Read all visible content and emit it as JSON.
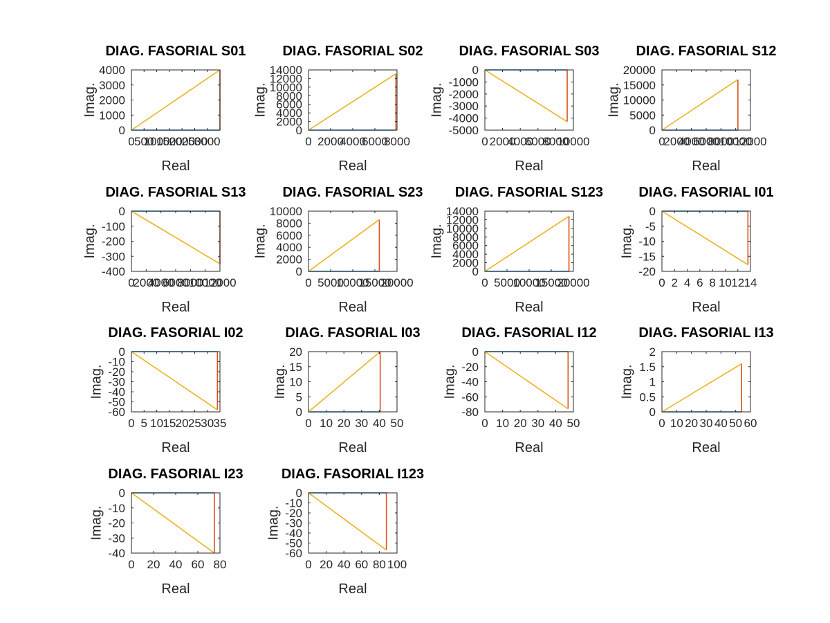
{
  "colors": {
    "real": "#0072BD",
    "imag": "#D95319",
    "phasor": "#EDB120",
    "axes": "#262626"
  },
  "chart_data": [
    {
      "type": "line",
      "title": "DIAG. FASORIAL S01",
      "xlabel": "Real",
      "ylabel": "Imag.",
      "xlim": [
        0,
        3500
      ],
      "ylim": [
        0,
        4000
      ],
      "xticks": [
        0,
        500,
        1000,
        1500,
        2000,
        2500,
        3000
      ],
      "yticks": [
        0,
        1000,
        2000,
        3000,
        4000
      ],
      "series": [
        {
          "x": [
            0,
            3500
          ],
          "y": [
            0,
            0
          ]
        },
        {
          "x": [
            3500,
            3500
          ],
          "y": [
            0,
            4000
          ]
        },
        {
          "x": [
            0,
            3500
          ],
          "y": [
            0,
            4000
          ]
        }
      ]
    },
    {
      "type": "line",
      "title": "DIAG. FASORIAL S02",
      "xlabel": "Real",
      "ylabel": "Imag.",
      "xlim": [
        0,
        8000
      ],
      "ylim": [
        0,
        14000
      ],
      "xticks": [
        0,
        2000,
        4000,
        6000,
        8000
      ],
      "yticks": [
        0,
        2000,
        4000,
        6000,
        8000,
        10000,
        12000,
        14000
      ],
      "series": [
        {
          "x": [
            0,
            7900
          ],
          "y": [
            0,
            0
          ]
        },
        {
          "x": [
            7900,
            7900
          ],
          "y": [
            0,
            13100
          ]
        },
        {
          "x": [
            0,
            7900
          ],
          "y": [
            0,
            13100
          ]
        }
      ]
    },
    {
      "type": "line",
      "title": "DIAG. FASORIAL S03",
      "xlabel": "Real",
      "ylabel": "Imag.",
      "xlim": [
        0,
        10000
      ],
      "ylim": [
        -5000,
        0
      ],
      "xticks": [
        0,
        2000,
        4000,
        6000,
        8000,
        10000
      ],
      "yticks": [
        -5000,
        -4000,
        -3000,
        -2000,
        -1000,
        0
      ],
      "series": [
        {
          "x": [
            0,
            9300
          ],
          "y": [
            0,
            0
          ]
        },
        {
          "x": [
            9300,
            9300
          ],
          "y": [
            0,
            -4300
          ]
        },
        {
          "x": [
            0,
            9300
          ],
          "y": [
            0,
            -4300
          ]
        }
      ]
    },
    {
      "type": "line",
      "title": "DIAG. FASORIAL S12",
      "xlabel": "Real",
      "ylabel": "Imag.",
      "xlim": [
        0,
        12000
      ],
      "ylim": [
        0,
        20000
      ],
      "xticks": [
        0,
        2000,
        4000,
        6000,
        8000,
        10000,
        12000
      ],
      "yticks": [
        0,
        5000,
        10000,
        15000,
        20000
      ],
      "series": [
        {
          "x": [
            0,
            10300
          ],
          "y": [
            0,
            0
          ]
        },
        {
          "x": [
            10300,
            10300
          ],
          "y": [
            0,
            16800
          ]
        },
        {
          "x": [
            0,
            10300
          ],
          "y": [
            0,
            16800
          ]
        }
      ]
    },
    {
      "type": "line",
      "title": "DIAG. FASORIAL S13",
      "xlabel": "Real",
      "ylabel": "Imag.",
      "xlim": [
        0,
        12000
      ],
      "ylim": [
        -400,
        0
      ],
      "xticks": [
        0,
        2000,
        4000,
        6000,
        8000,
        10000,
        12000
      ],
      "yticks": [
        -400,
        -300,
        -200,
        -100,
        0
      ],
      "series": [
        {
          "x": [
            0,
            12000
          ],
          "y": [
            0,
            0
          ]
        },
        {
          "x": [
            12000,
            12000
          ],
          "y": [
            0,
            -350
          ]
        },
        {
          "x": [
            0,
            12000
          ],
          "y": [
            0,
            -350
          ]
        }
      ]
    },
    {
      "type": "line",
      "title": "DIAG. FASORIAL S23",
      "xlabel": "Real",
      "ylabel": "Imag.",
      "xlim": [
        0,
        20000
      ],
      "ylim": [
        0,
        10000
      ],
      "xticks": [
        0,
        5000,
        10000,
        15000,
        20000
      ],
      "yticks": [
        0,
        2000,
        4000,
        6000,
        8000,
        10000
      ],
      "series": [
        {
          "x": [
            0,
            16000
          ],
          "y": [
            0,
            0
          ]
        },
        {
          "x": [
            16000,
            16000
          ],
          "y": [
            0,
            8600
          ]
        },
        {
          "x": [
            0,
            16000
          ],
          "y": [
            0,
            8600
          ]
        }
      ]
    },
    {
      "type": "line",
      "title": "DIAG. FASORIAL S123",
      "xlabel": "Real",
      "ylabel": "Imag.",
      "xlim": [
        0,
        20000
      ],
      "ylim": [
        0,
        14000
      ],
      "xticks": [
        0,
        5000,
        10000,
        15000,
        20000
      ],
      "yticks": [
        0,
        2000,
        4000,
        6000,
        8000,
        10000,
        12000,
        14000
      ],
      "series": [
        {
          "x": [
            0,
            19000
          ],
          "y": [
            0,
            0
          ]
        },
        {
          "x": [
            19000,
            19000
          ],
          "y": [
            0,
            12800
          ]
        },
        {
          "x": [
            0,
            19000
          ],
          "y": [
            0,
            12800
          ]
        }
      ]
    },
    {
      "type": "line",
      "title": "DIAG. FASORIAL I01",
      "xlabel": "Real",
      "ylabel": "Imag.",
      "xlim": [
        0,
        14
      ],
      "ylim": [
        -20,
        0
      ],
      "xticks": [
        0,
        2,
        4,
        6,
        8,
        10,
        12,
        14
      ],
      "yticks": [
        -20,
        -15,
        -10,
        -5,
        0
      ],
      "series": [
        {
          "x": [
            0,
            13.6
          ],
          "y": [
            0,
            0
          ]
        },
        {
          "x": [
            13.6,
            13.6
          ],
          "y": [
            0,
            -17.8
          ]
        },
        {
          "x": [
            0,
            13.6
          ],
          "y": [
            0,
            -17.8
          ]
        }
      ]
    },
    {
      "type": "line",
      "title": "DIAG. FASORIAL I02",
      "xlabel": "Real",
      "ylabel": "Imag.",
      "xlim": [
        0,
        35
      ],
      "ylim": [
        -60,
        0
      ],
      "xticks": [
        0,
        5,
        10,
        15,
        20,
        25,
        30,
        35
      ],
      "yticks": [
        -60,
        -50,
        -40,
        -30,
        -20,
        -10,
        0
      ],
      "series": [
        {
          "x": [
            0,
            34
          ],
          "y": [
            0,
            0
          ]
        },
        {
          "x": [
            34,
            34
          ],
          "y": [
            0,
            -58
          ]
        },
        {
          "x": [
            0,
            34
          ],
          "y": [
            0,
            -58
          ]
        }
      ]
    },
    {
      "type": "line",
      "title": "DIAG. FASORIAL I03",
      "xlabel": "Real",
      "ylabel": "Imag.",
      "xlim": [
        0,
        50
      ],
      "ylim": [
        0,
        20
      ],
      "xticks": [
        0,
        10,
        20,
        30,
        40,
        50
      ],
      "yticks": [
        0,
        5,
        10,
        15,
        20
      ],
      "series": [
        {
          "x": [
            0,
            40.5
          ],
          "y": [
            0,
            0
          ]
        },
        {
          "x": [
            40.5,
            40.5
          ],
          "y": [
            0,
            20
          ]
        },
        {
          "x": [
            0,
            40.5
          ],
          "y": [
            0,
            20
          ]
        }
      ]
    },
    {
      "type": "line",
      "title": "DIAG. FASORIAL I12",
      "xlabel": "Real",
      "ylabel": "Imag.",
      "xlim": [
        0,
        50
      ],
      "ylim": [
        -80,
        0
      ],
      "xticks": [
        0,
        10,
        20,
        30,
        40,
        50
      ],
      "yticks": [
        -80,
        -60,
        -40,
        -20,
        0
      ],
      "series": [
        {
          "x": [
            0,
            47
          ],
          "y": [
            0,
            0
          ]
        },
        {
          "x": [
            47,
            47
          ],
          "y": [
            0,
            -76
          ]
        },
        {
          "x": [
            0,
            47
          ],
          "y": [
            0,
            -76
          ]
        }
      ]
    },
    {
      "type": "line",
      "title": "DIAG. FASORIAL I13",
      "xlabel": "Real",
      "ylabel": "Imag.",
      "xlim": [
        0,
        60
      ],
      "ylim": [
        0,
        2
      ],
      "xticks": [
        0,
        10,
        20,
        30,
        40,
        50,
        60
      ],
      "yticks": [
        0,
        0.5,
        1,
        1.5,
        2
      ],
      "series": [
        {
          "x": [
            0,
            54
          ],
          "y": [
            0,
            0
          ]
        },
        {
          "x": [
            54,
            54
          ],
          "y": [
            0,
            1.6
          ]
        },
        {
          "x": [
            0,
            54
          ],
          "y": [
            0,
            1.6
          ]
        }
      ]
    },
    {
      "type": "line",
      "title": "DIAG. FASORIAL I23",
      "xlabel": "Real",
      "ylabel": "Imag.",
      "xlim": [
        0,
        80
      ],
      "ylim": [
        -40,
        0
      ],
      "xticks": [
        0,
        20,
        40,
        60,
        80
      ],
      "yticks": [
        -40,
        -30,
        -20,
        -10,
        0
      ],
      "series": [
        {
          "x": [
            0,
            75
          ],
          "y": [
            0,
            0
          ]
        },
        {
          "x": [
            75,
            75
          ],
          "y": [
            0,
            -40
          ]
        },
        {
          "x": [
            0,
            75
          ],
          "y": [
            0,
            -40
          ]
        }
      ]
    },
    {
      "type": "line",
      "title": "DIAG. FASORIAL I123",
      "xlabel": "Real",
      "ylabel": "Imag.",
      "xlim": [
        0,
        100
      ],
      "ylim": [
        -60,
        0
      ],
      "xticks": [
        0,
        20,
        40,
        60,
        80,
        100
      ],
      "yticks": [
        -60,
        -50,
        -40,
        -30,
        -20,
        -10,
        0
      ],
      "series": [
        {
          "x": [
            0,
            88
          ],
          "y": [
            0,
            0
          ]
        },
        {
          "x": [
            88,
            88
          ],
          "y": [
            0,
            -57
          ]
        },
        {
          "x": [
            0,
            88
          ],
          "y": [
            0,
            -57
          ]
        }
      ]
    }
  ]
}
